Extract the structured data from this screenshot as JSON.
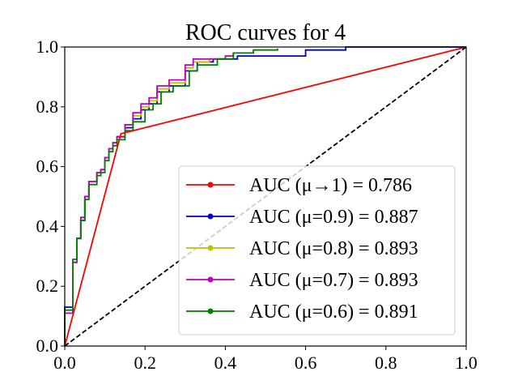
{
  "chart_data": {
    "type": "line",
    "title": "ROC curves for 4",
    "xlabel": "",
    "ylabel": "",
    "xlim": [
      0.0,
      1.0
    ],
    "ylim": [
      0.0,
      1.0
    ],
    "grid": false,
    "legend_location": "lower-right",
    "x_ticks": [
      "0.0",
      "0.2",
      "0.4",
      "0.6",
      "0.8",
      "1.0"
    ],
    "y_ticks": [
      "0.0",
      "0.2",
      "0.4",
      "0.6",
      "0.8",
      "1.0"
    ],
    "x_tick_values": [
      0.0,
      0.2,
      0.4,
      0.6,
      0.8,
      1.0
    ],
    "y_tick_values": [
      0.0,
      0.2,
      0.4,
      0.6,
      0.8,
      1.0
    ],
    "diagonal": {
      "x": [
        0,
        1
      ],
      "y": [
        0,
        1
      ],
      "color": "#000000",
      "style": "dashed"
    },
    "series": [
      {
        "name": "AUC (μ→1) = 0.786",
        "color": "#ff0000",
        "x": [
          0.0,
          0.14,
          1.0
        ],
        "y": [
          0.0,
          0.71,
          1.0
        ]
      },
      {
        "name": "AUC (μ=0.9) = 0.887",
        "color": "#0000cc",
        "x": [
          0.0,
          0.0,
          0.02,
          0.03,
          0.04,
          0.05,
          0.06,
          0.08,
          0.09,
          0.1,
          0.11,
          0.12,
          0.13,
          0.15,
          0.17,
          0.19,
          0.21,
          0.23,
          0.26,
          0.3,
          0.33,
          0.37,
          0.41,
          0.43,
          0.59,
          0.6,
          0.7,
          0.8,
          1.0
        ],
        "y": [
          0.0,
          0.13,
          0.28,
          0.36,
          0.42,
          0.5,
          0.55,
          0.58,
          0.59,
          0.63,
          0.66,
          0.68,
          0.7,
          0.73,
          0.76,
          0.79,
          0.81,
          0.85,
          0.87,
          0.92,
          0.95,
          0.96,
          0.96,
          0.97,
          0.97,
          0.99,
          1.0,
          1.0,
          1.0
        ]
      },
      {
        "name": "AUC (μ=0.8) = 0.893",
        "color": "#bfbf00",
        "x": [
          0.0,
          0.0,
          0.02,
          0.03,
          0.04,
          0.05,
          0.06,
          0.08,
          0.09,
          0.1,
          0.11,
          0.12,
          0.13,
          0.15,
          0.17,
          0.19,
          0.21,
          0.23,
          0.26,
          0.3,
          0.32,
          0.36,
          0.4,
          0.42
        ],
        "y": [
          0.0,
          0.11,
          0.28,
          0.36,
          0.43,
          0.5,
          0.55,
          0.58,
          0.59,
          0.63,
          0.66,
          0.68,
          0.7,
          0.74,
          0.77,
          0.8,
          0.82,
          0.86,
          0.88,
          0.93,
          0.95,
          0.96,
          0.97,
          0.98
        ]
      },
      {
        "name": "AUC (μ=0.7) = 0.893",
        "color": "#bf00bf",
        "x": [
          0.0,
          0.0,
          0.02,
          0.03,
          0.04,
          0.05,
          0.06,
          0.08,
          0.09,
          0.1,
          0.11,
          0.12,
          0.13,
          0.15,
          0.17,
          0.19,
          0.21,
          0.23,
          0.26,
          0.3,
          0.32,
          0.36,
          0.4,
          0.42
        ],
        "y": [
          0.0,
          0.11,
          0.28,
          0.36,
          0.43,
          0.5,
          0.55,
          0.58,
          0.59,
          0.63,
          0.66,
          0.68,
          0.7,
          0.74,
          0.78,
          0.81,
          0.83,
          0.87,
          0.89,
          0.94,
          0.96,
          0.96,
          0.97,
          0.98
        ]
      },
      {
        "name": "AUC (μ=0.6) = 0.891",
        "color": "#007f00",
        "x": [
          0.0,
          0.0,
          0.02,
          0.03,
          0.04,
          0.05,
          0.06,
          0.08,
          0.09,
          0.1,
          0.11,
          0.12,
          0.13,
          0.15,
          0.17,
          0.2,
          0.22,
          0.24,
          0.27,
          0.31,
          0.33,
          0.38,
          0.42,
          0.47,
          0.53
        ],
        "y": [
          0.0,
          0.12,
          0.29,
          0.36,
          0.42,
          0.49,
          0.54,
          0.57,
          0.58,
          0.62,
          0.65,
          0.67,
          0.69,
          0.72,
          0.75,
          0.79,
          0.81,
          0.85,
          0.87,
          0.92,
          0.94,
          0.96,
          0.98,
          0.99,
          0.995
        ]
      }
    ]
  }
}
